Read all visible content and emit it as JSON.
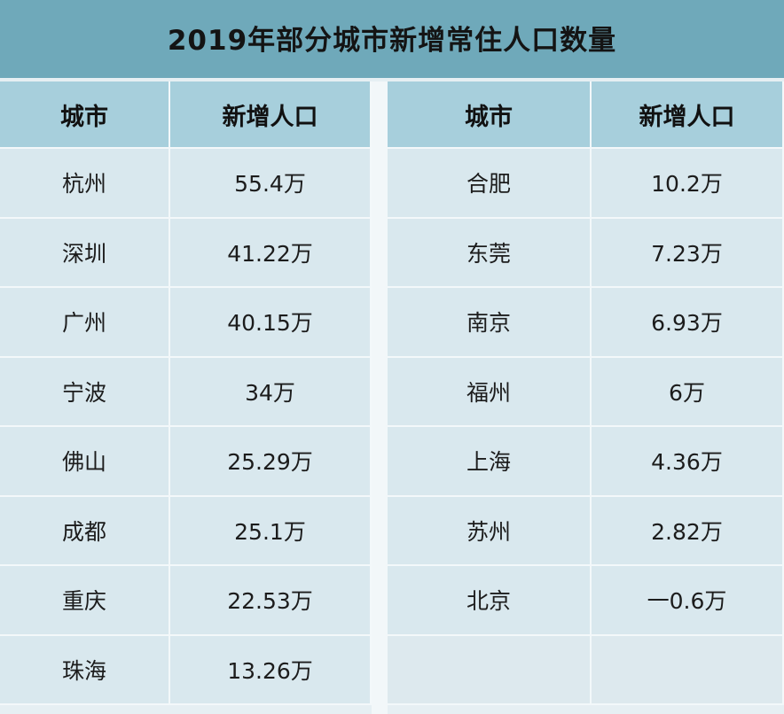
{
  "title": "2019年部分城市新增常住人口数量",
  "headers": {
    "city": "城市",
    "value": "新增人口"
  },
  "chart_data": {
    "type": "table",
    "title": "2019年部分城市新增常住人口数量",
    "columns": [
      "城市",
      "新增人口"
    ],
    "left": [
      {
        "city": "杭州",
        "value": "55.4万"
      },
      {
        "city": "深圳",
        "value": "41.22万"
      },
      {
        "city": "广州",
        "value": "40.15万"
      },
      {
        "city": "宁波",
        "value": "34万"
      },
      {
        "city": "佛山",
        "value": "25.29万"
      },
      {
        "city": "成都",
        "value": "25.1万"
      },
      {
        "city": "重庆",
        "value": "22.53万"
      },
      {
        "city": "珠海",
        "value": "13.26万"
      }
    ],
    "right": [
      {
        "city": "合肥",
        "value": "10.2万"
      },
      {
        "city": "东莞",
        "value": "7.23万"
      },
      {
        "city": "南京",
        "value": "6.93万"
      },
      {
        "city": "福州",
        "value": "6万"
      },
      {
        "city": "上海",
        "value": "4.36万"
      },
      {
        "city": "苏州",
        "value": "2.82万"
      },
      {
        "city": "北京",
        "value": "一0.6万"
      }
    ]
  }
}
